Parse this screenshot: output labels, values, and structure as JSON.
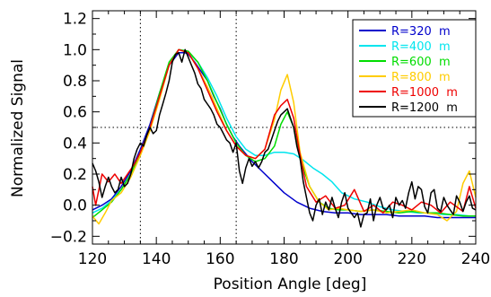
{
  "chart_data": {
    "type": "line",
    "xlabel": "Position Angle [deg]",
    "ylabel": "Normalized Signal",
    "xlim": [
      120,
      240
    ],
    "ylim": [
      -0.25,
      1.25
    ],
    "xticks": [
      120,
      140,
      160,
      180,
      200,
      220,
      240
    ],
    "xtick_labels": [
      "120",
      "140",
      "160",
      "180",
      "200",
      "220",
      "240"
    ],
    "yticks": [
      -0.2,
      0.0,
      0.2,
      0.4,
      0.6,
      0.8,
      1.0,
      1.2
    ],
    "ytick_labels": [
      "−0.2",
      "0.0",
      "0.2",
      "0.4",
      "0.6",
      "0.8",
      "1.0",
      "1.2"
    ],
    "reference_lines": {
      "vertical": [
        135,
        165
      ],
      "horizontal": [
        0.5
      ],
      "style": "dotted"
    },
    "legend_position": "top-right",
    "series": [
      {
        "name": "R=320  m",
        "color": "#0000cc",
        "x": [
          120,
          123,
          126,
          129,
          132,
          135,
          138,
          141,
          144,
          147,
          149,
          150,
          152,
          154,
          156,
          158,
          160,
          162,
          164,
          166,
          168,
          170,
          173,
          176,
          180,
          184,
          188,
          192,
          196,
          200,
          204,
          208,
          212,
          216,
          220,
          224,
          228,
          232,
          236,
          240
        ],
        "y": [
          -0.03,
          0.0,
          0.04,
          0.12,
          0.22,
          0.36,
          0.52,
          0.72,
          0.9,
          0.98,
          0.98,
          0.97,
          0.92,
          0.86,
          0.8,
          0.7,
          0.62,
          0.52,
          0.44,
          0.38,
          0.33,
          0.28,
          0.22,
          0.16,
          0.08,
          0.02,
          -0.02,
          -0.04,
          -0.05,
          -0.05,
          -0.06,
          -0.06,
          -0.06,
          -0.07,
          -0.07,
          -0.07,
          -0.08,
          -0.08,
          -0.08,
          -0.08
        ]
      },
      {
        "name": "R=400  m",
        "color": "#00e5ee",
        "x": [
          120,
          123,
          126,
          129,
          132,
          135,
          138,
          141,
          144,
          147,
          150,
          153,
          156,
          159,
          162,
          165,
          168,
          171,
          174,
          177,
          180,
          183,
          186,
          189,
          192,
          195,
          198,
          202,
          206,
          210,
          214,
          218,
          222,
          226,
          230,
          234,
          238,
          240
        ],
        "y": [
          -0.05,
          -0.02,
          0.03,
          0.1,
          0.2,
          0.34,
          0.5,
          0.7,
          0.9,
          1.0,
          0.98,
          0.92,
          0.82,
          0.7,
          0.56,
          0.44,
          0.36,
          0.32,
          0.32,
          0.34,
          0.34,
          0.33,
          0.29,
          0.24,
          0.2,
          0.15,
          0.08,
          0.04,
          0.02,
          -0.01,
          -0.03,
          -0.04,
          -0.05,
          -0.05,
          -0.06,
          -0.06,
          -0.07,
          -0.07
        ]
      },
      {
        "name": "R=600  m",
        "color": "#00dd00",
        "x": [
          120,
          123,
          126,
          129,
          132,
          135,
          138,
          141,
          144,
          147,
          150,
          153,
          156,
          159,
          162,
          165,
          168,
          171,
          174,
          177,
          179,
          181,
          183,
          185,
          188,
          191,
          194,
          197,
          200,
          204,
          208,
          212,
          216,
          220,
          224,
          228,
          232,
          236,
          240
        ],
        "y": [
          -0.08,
          -0.03,
          0.02,
          0.1,
          0.2,
          0.34,
          0.5,
          0.72,
          0.92,
          1.0,
          0.99,
          0.92,
          0.8,
          0.66,
          0.52,
          0.4,
          0.32,
          0.28,
          0.3,
          0.38,
          0.52,
          0.6,
          0.5,
          0.3,
          0.12,
          0.02,
          -0.02,
          -0.03,
          -0.03,
          -0.04,
          -0.03,
          -0.04,
          -0.05,
          -0.04,
          -0.05,
          -0.05,
          -0.06,
          -0.07,
          -0.07
        ]
      },
      {
        "name": "R=800  m",
        "color": "#ffcc00",
        "x": [
          120,
          122,
          124,
          126,
          129,
          132,
          135,
          138,
          141,
          144,
          147,
          150,
          153,
          156,
          159,
          162,
          165,
          168,
          171,
          174,
          177,
          179,
          181,
          183,
          185,
          188,
          191,
          194,
          197,
          200,
          204,
          208,
          212,
          216,
          220,
          224,
          228,
          231,
          234,
          236,
          238,
          240
        ],
        "y": [
          -0.07,
          -0.12,
          -0.05,
          0.03,
          0.08,
          0.18,
          0.32,
          0.48,
          0.68,
          0.9,
          1.0,
          0.98,
          0.88,
          0.76,
          0.62,
          0.48,
          0.38,
          0.32,
          0.3,
          0.36,
          0.55,
          0.74,
          0.84,
          0.66,
          0.34,
          0.12,
          0.02,
          -0.03,
          -0.02,
          -0.03,
          -0.04,
          -0.03,
          -0.05,
          -0.04,
          -0.03,
          -0.05,
          -0.06,
          -0.1,
          -0.04,
          0.14,
          0.22,
          0.05
        ]
      },
      {
        "name": "R=1000  m",
        "color": "#ee0000",
        "x": [
          120,
          121,
          123,
          125,
          127,
          129,
          131,
          133,
          135,
          138,
          141,
          144,
          147,
          150,
          153,
          156,
          159,
          162,
          165,
          168,
          171,
          174,
          177,
          179,
          181,
          183,
          185,
          187,
          190,
          193,
          196,
          199,
          202,
          205,
          208,
          211,
          214,
          217,
          220,
          223,
          226,
          229,
          232,
          236,
          238,
          240
        ],
        "y": [
          0.12,
          0.0,
          0.2,
          0.15,
          0.2,
          0.14,
          0.2,
          0.26,
          0.34,
          0.5,
          0.7,
          0.9,
          1.0,
          0.98,
          0.88,
          0.74,
          0.6,
          0.48,
          0.38,
          0.32,
          0.3,
          0.36,
          0.58,
          0.64,
          0.68,
          0.56,
          0.32,
          0.12,
          0.02,
          0.06,
          -0.02,
          0.0,
          0.1,
          -0.04,
          0.0,
          -0.05,
          0.02,
          0.0,
          -0.03,
          0.02,
          0.0,
          -0.05,
          0.02,
          -0.04,
          0.12,
          -0.02
        ]
      },
      {
        "name": "R=1200  m",
        "color": "#000000",
        "x": [
          120,
          121,
          122,
          123,
          124,
          125,
          126,
          127,
          128,
          129,
          130,
          131,
          132,
          133,
          134,
          135,
          136,
          137,
          138,
          139,
          140,
          141,
          142,
          143,
          144,
          145,
          146,
          147,
          148,
          149,
          150,
          151,
          152,
          153,
          154,
          155,
          156,
          157,
          158,
          159,
          160,
          161,
          162,
          163,
          164,
          165,
          166,
          167,
          168,
          169,
          170,
          171,
          172,
          173,
          174,
          175,
          176,
          177,
          178,
          179,
          180,
          181,
          182,
          183,
          184,
          185,
          186,
          187,
          188,
          189,
          190,
          191,
          192,
          193,
          194,
          195,
          196,
          197,
          198,
          199,
          200,
          201,
          202,
          203,
          204,
          205,
          206,
          207,
          208,
          209,
          210,
          211,
          212,
          213,
          214,
          215,
          216,
          217,
          218,
          219,
          220,
          221,
          222,
          223,
          224,
          225,
          226,
          227,
          228,
          229,
          230,
          231,
          232,
          233,
          234,
          235,
          236,
          237,
          238,
          239,
          240
        ],
        "y": [
          0.27,
          0.22,
          0.15,
          0.05,
          0.12,
          0.18,
          0.12,
          0.08,
          0.1,
          0.18,
          0.12,
          0.14,
          0.2,
          0.3,
          0.36,
          0.4,
          0.38,
          0.45,
          0.5,
          0.46,
          0.48,
          0.58,
          0.65,
          0.72,
          0.8,
          0.92,
          0.97,
          0.98,
          0.92,
          1.0,
          0.95,
          0.9,
          0.85,
          0.78,
          0.75,
          0.68,
          0.65,
          0.62,
          0.58,
          0.52,
          0.5,
          0.46,
          0.42,
          0.4,
          0.34,
          0.4,
          0.22,
          0.14,
          0.24,
          0.3,
          0.25,
          0.28,
          0.24,
          0.28,
          0.34,
          0.36,
          0.42,
          0.48,
          0.54,
          0.58,
          0.6,
          0.62,
          0.56,
          0.5,
          0.38,
          0.3,
          0.15,
          0.05,
          -0.05,
          -0.1,
          0.0,
          0.04,
          -0.06,
          0.02,
          -0.03,
          0.05,
          -0.02,
          -0.08,
          0.02,
          0.08,
          -0.02,
          -0.05,
          -0.08,
          -0.05,
          -0.14,
          -0.06,
          -0.05,
          0.04,
          -0.1,
          0.0,
          0.05,
          -0.02,
          -0.03,
          0.0,
          -0.08,
          0.05,
          0.0,
          0.03,
          -0.02,
          0.08,
          0.15,
          0.04,
          0.12,
          0.1,
          -0.01,
          -0.05,
          0.08,
          0.1,
          -0.02,
          -0.04,
          0.05,
          0.0,
          -0.03,
          -0.06,
          0.06,
          0.02,
          -0.04,
          0.02,
          0.06,
          -0.02,
          -0.03
        ]
      }
    ]
  }
}
